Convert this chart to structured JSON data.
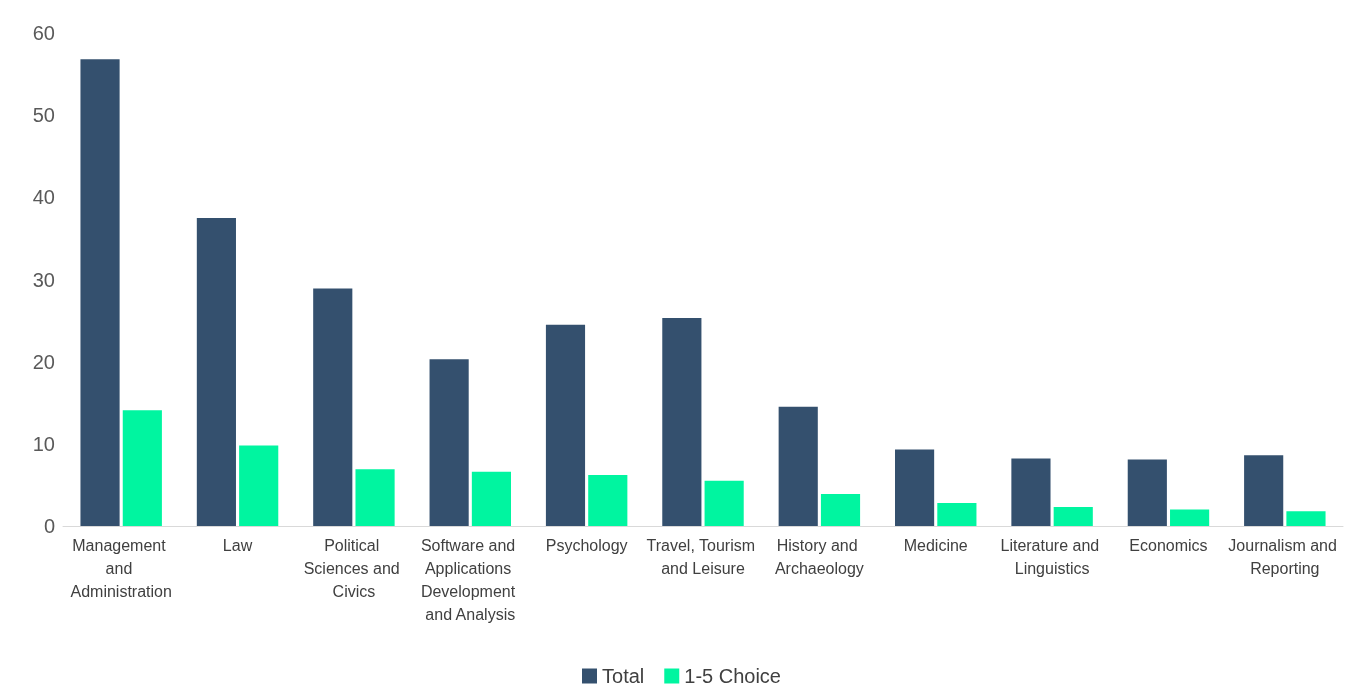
{
  "chart_data": {
    "type": "bar",
    "categories": [
      "Management and Administration",
      "Law",
      "Political Sciences and Civics",
      "Software and Applications Development and Analysis",
      "Psychology",
      "Travel, Tourism and Leisure",
      "History and Archaeology",
      "Medicine",
      "Literature and Linguistics",
      "Economics",
      "Journalism and Reporting"
    ],
    "series": [
      {
        "name": "Total",
        "color": "#34506e",
        "values": [
          56.8,
          37.5,
          28.9,
          20.3,
          24.5,
          25.3,
          14.5,
          9.3,
          8.2,
          8.1,
          8.6
        ]
      },
      {
        "name": "1-5 Choice",
        "color": "#00f5a0",
        "values": [
          14.1,
          9.8,
          6.9,
          6.6,
          6.2,
          5.5,
          3.9,
          2.8,
          2.3,
          2.0,
          1.8
        ]
      }
    ],
    "ylim": [
      0,
      60
    ],
    "yticks": [
      0,
      10,
      20,
      30,
      40,
      50,
      60
    ],
    "grid": false,
    "legend": "bottom"
  }
}
